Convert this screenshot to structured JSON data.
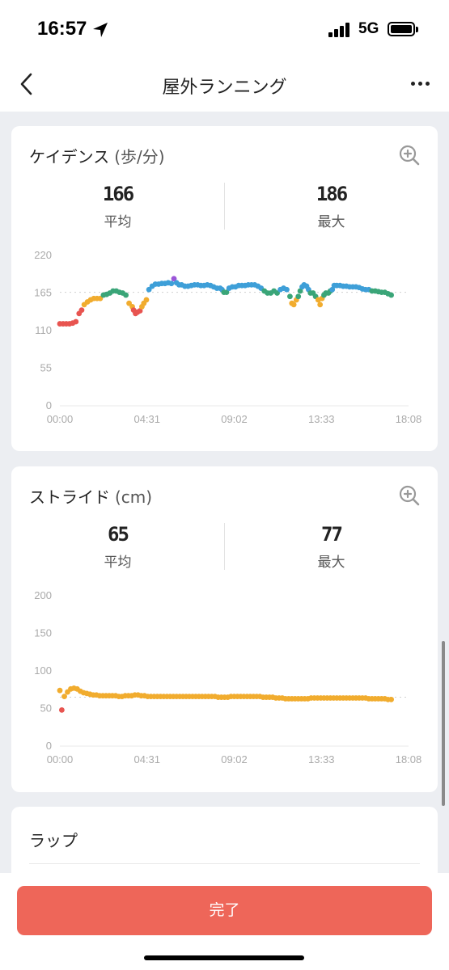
{
  "status_bar": {
    "time": "16:57",
    "network": "5G"
  },
  "nav": {
    "title": "屋外ランニング",
    "icons": [
      "chevron-left-icon",
      "more-dots-icon"
    ]
  },
  "cadence": {
    "title": "ケイデンス",
    "unit": "(歩/分)",
    "avg_value": "166",
    "avg_label": "平均",
    "max_value": "186",
    "max_label": "最大"
  },
  "stride": {
    "title": "ストライド",
    "unit": "(cm)",
    "avg_value": "65",
    "avg_label": "平均",
    "max_value": "77",
    "max_label": "最大"
  },
  "lap": {
    "title": "ラップ"
  },
  "footer": {
    "done_label": "完了"
  },
  "colors": {
    "red": "#e85450",
    "orange": "#f1ac2e",
    "green": "#3aa578",
    "blue": "#3e9fd8",
    "purple": "#9b55d8",
    "accent": "#ee6659"
  },
  "chart_data": [
    {
      "type": "scatter",
      "title": "ケイデンス (歩/分)",
      "x_tick_labels": [
        "00:00",
        "04:31",
        "09:02",
        "13:33",
        "18:08"
      ],
      "x_range_minutes": [
        0,
        1088
      ],
      "ylim": [
        0,
        220
      ],
      "yticks": [
        0,
        55,
        110,
        165,
        220
      ],
      "reference_line": 166,
      "points": [
        [
          0,
          120
        ],
        [
          10,
          120
        ],
        [
          20,
          120
        ],
        [
          30,
          120
        ],
        [
          40,
          121
        ],
        [
          50,
          123
        ],
        [
          60,
          135
        ],
        [
          68,
          140
        ],
        [
          76,
          148
        ],
        [
          86,
          152
        ],
        [
          96,
          155
        ],
        [
          106,
          157
        ],
        [
          116,
          157
        ],
        [
          126,
          157
        ],
        [
          136,
          162
        ],
        [
          146,
          163
        ],
        [
          156,
          165
        ],
        [
          166,
          168
        ],
        [
          176,
          168
        ],
        [
          186,
          166
        ],
        [
          196,
          165
        ],
        [
          206,
          162
        ],
        [
          216,
          150
        ],
        [
          226,
          145
        ],
        [
          230,
          140
        ],
        [
          236,
          135
        ],
        [
          242,
          137
        ],
        [
          250,
          139
        ],
        [
          256,
          145
        ],
        [
          262,
          150
        ],
        [
          270,
          155
        ],
        [
          278,
          170
        ],
        [
          288,
          175
        ],
        [
          298,
          178
        ],
        [
          308,
          178
        ],
        [
          318,
          179
        ],
        [
          328,
          179
        ],
        [
          338,
          180
        ],
        [
          348,
          179
        ],
        [
          356,
          186
        ],
        [
          364,
          180
        ],
        [
          372,
          177
        ],
        [
          380,
          177
        ],
        [
          390,
          175
        ],
        [
          400,
          175
        ],
        [
          410,
          176
        ],
        [
          420,
          177
        ],
        [
          430,
          177
        ],
        [
          440,
          176
        ],
        [
          450,
          176
        ],
        [
          460,
          177
        ],
        [
          470,
          176
        ],
        [
          480,
          174
        ],
        [
          490,
          172
        ],
        [
          500,
          172
        ],
        [
          506,
          170
        ],
        [
          512,
          166
        ],
        [
          520,
          166
        ],
        [
          528,
          172
        ],
        [
          538,
          174
        ],
        [
          548,
          174
        ],
        [
          558,
          176
        ],
        [
          568,
          176
        ],
        [
          578,
          176
        ],
        [
          588,
          177
        ],
        [
          598,
          177
        ],
        [
          608,
          177
        ],
        [
          618,
          175
        ],
        [
          628,
          172
        ],
        [
          638,
          168
        ],
        [
          648,
          165
        ],
        [
          658,
          165
        ],
        [
          668,
          168
        ],
        [
          678,
          165
        ],
        [
          688,
          170
        ],
        [
          698,
          172
        ],
        [
          708,
          170
        ],
        [
          718,
          160
        ],
        [
          724,
          150
        ],
        [
          730,
          148
        ],
        [
          738,
          155
        ],
        [
          744,
          160
        ],
        [
          750,
          168
        ],
        [
          756,
          174
        ],
        [
          762,
          177
        ],
        [
          770,
          175
        ],
        [
          776,
          170
        ],
        [
          782,
          165
        ],
        [
          790,
          165
        ],
        [
          798,
          160
        ],
        [
          806,
          155
        ],
        [
          812,
          148
        ],
        [
          818,
          157
        ],
        [
          824,
          162
        ],
        [
          830,
          165
        ],
        [
          838,
          165
        ],
        [
          844,
          168
        ],
        [
          850,
          170
        ],
        [
          856,
          176
        ],
        [
          864,
          176
        ],
        [
          874,
          176
        ],
        [
          884,
          175
        ],
        [
          894,
          175
        ],
        [
          904,
          174
        ],
        [
          914,
          174
        ],
        [
          924,
          174
        ],
        [
          934,
          173
        ],
        [
          944,
          171
        ],
        [
          954,
          170
        ],
        [
          964,
          170
        ],
        [
          974,
          168
        ],
        [
          984,
          168
        ],
        [
          994,
          167
        ],
        [
          1004,
          166
        ],
        [
          1014,
          166
        ],
        [
          1024,
          164
        ],
        [
          1034,
          162
        ]
      ],
      "legend": "none",
      "grid": false
    },
    {
      "type": "scatter",
      "title": "ストライド (cm)",
      "x_tick_labels": [
        "00:00",
        "04:31",
        "09:02",
        "13:33",
        "18:08"
      ],
      "x_range_minutes": [
        0,
        1088
      ],
      "ylim": [
        0,
        200
      ],
      "yticks": [
        0,
        50,
        100,
        150,
        200
      ],
      "reference_line": 65,
      "points": [
        [
          0,
          74
        ],
        [
          6,
          48
        ],
        [
          14,
          66
        ],
        [
          24,
          72
        ],
        [
          34,
          76
        ],
        [
          44,
          77
        ],
        [
          54,
          76
        ],
        [
          64,
          73
        ],
        [
          74,
          71
        ],
        [
          84,
          70
        ],
        [
          94,
          69
        ],
        [
          104,
          68
        ],
        [
          114,
          68
        ],
        [
          124,
          67
        ],
        [
          134,
          67
        ],
        [
          144,
          67
        ],
        [
          154,
          67
        ],
        [
          164,
          67
        ],
        [
          174,
          67
        ],
        [
          184,
          66
        ],
        [
          194,
          66
        ],
        [
          204,
          67
        ],
        [
          214,
          67
        ],
        [
          224,
          67
        ],
        [
          234,
          68
        ],
        [
          244,
          68
        ],
        [
          254,
          67
        ],
        [
          264,
          67
        ],
        [
          274,
          66
        ],
        [
          284,
          66
        ],
        [
          294,
          66
        ],
        [
          304,
          66
        ],
        [
          314,
          66
        ],
        [
          324,
          66
        ],
        [
          334,
          66
        ],
        [
          344,
          66
        ],
        [
          354,
          66
        ],
        [
          364,
          66
        ],
        [
          374,
          66
        ],
        [
          384,
          66
        ],
        [
          394,
          66
        ],
        [
          404,
          66
        ],
        [
          414,
          66
        ],
        [
          424,
          66
        ],
        [
          434,
          66
        ],
        [
          444,
          66
        ],
        [
          454,
          66
        ],
        [
          464,
          66
        ],
        [
          474,
          66
        ],
        [
          484,
          66
        ],
        [
          494,
          65
        ],
        [
          504,
          65
        ],
        [
          514,
          65
        ],
        [
          524,
          65
        ],
        [
          534,
          66
        ],
        [
          544,
          66
        ],
        [
          554,
          66
        ],
        [
          564,
          66
        ],
        [
          574,
          66
        ],
        [
          584,
          66
        ],
        [
          594,
          66
        ],
        [
          604,
          66
        ],
        [
          614,
          66
        ],
        [
          624,
          66
        ],
        [
          634,
          65
        ],
        [
          644,
          65
        ],
        [
          654,
          65
        ],
        [
          664,
          65
        ],
        [
          674,
          64
        ],
        [
          684,
          64
        ],
        [
          694,
          64
        ],
        [
          704,
          63
        ],
        [
          714,
          63
        ],
        [
          724,
          63
        ],
        [
          734,
          63
        ],
        [
          744,
          63
        ],
        [
          754,
          63
        ],
        [
          764,
          63
        ],
        [
          774,
          63
        ],
        [
          784,
          64
        ],
        [
          794,
          64
        ],
        [
          804,
          64
        ],
        [
          814,
          64
        ],
        [
          824,
          64
        ],
        [
          834,
          64
        ],
        [
          844,
          64
        ],
        [
          854,
          64
        ],
        [
          864,
          64
        ],
        [
          874,
          64
        ],
        [
          884,
          64
        ],
        [
          894,
          64
        ],
        [
          904,
          64
        ],
        [
          914,
          64
        ],
        [
          924,
          64
        ],
        [
          934,
          64
        ],
        [
          944,
          64
        ],
        [
          954,
          64
        ],
        [
          964,
          63
        ],
        [
          974,
          63
        ],
        [
          984,
          63
        ],
        [
          994,
          63
        ],
        [
          1004,
          63
        ],
        [
          1014,
          63
        ],
        [
          1024,
          62
        ],
        [
          1034,
          62
        ]
      ],
      "legend": "none",
      "grid": false
    }
  ]
}
